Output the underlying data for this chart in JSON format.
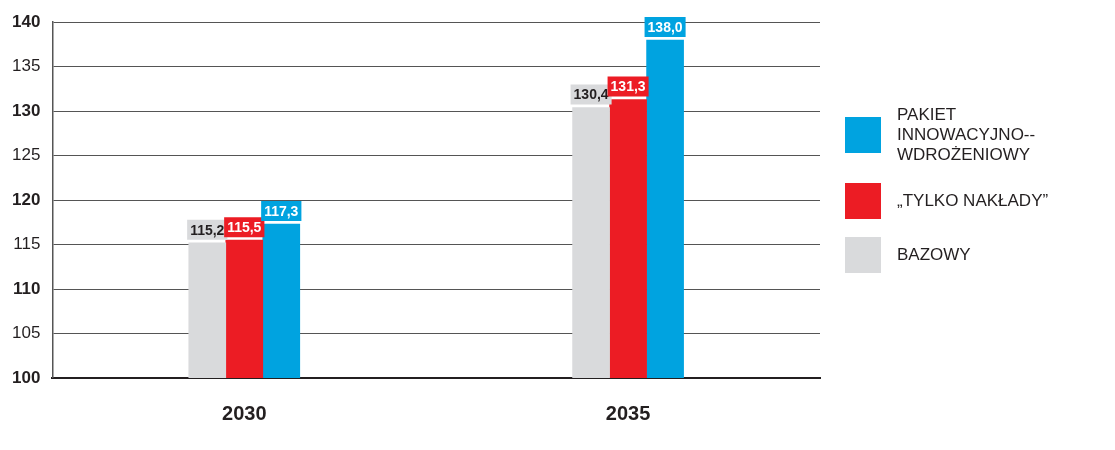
{
  "chart_data": {
    "type": "bar",
    "categories": [
      "2030",
      "2035"
    ],
    "series": [
      {
        "name": "BAZOWY",
        "color": "#d9dadc",
        "values": [
          115.2,
          130.4
        ],
        "value_labels": [
          "115,2",
          "130,4"
        ]
      },
      {
        "name": "„TYLKO NAKŁADY”",
        "color": "#ec1c24",
        "values": [
          115.5,
          131.3
        ],
        "value_labels": [
          "115,5",
          "131,3"
        ]
      },
      {
        "name": "PAKIET INNOWACYJNO--WDROŻENIOWY",
        "color": "#00a3e0",
        "values": [
          117.3,
          138.0
        ],
        "value_labels": [
          "117,3",
          "138,0"
        ]
      }
    ],
    "ylim": [
      100,
      140
    ],
    "yticks": [
      100,
      105,
      110,
      115,
      120,
      125,
      130,
      135,
      140
    ],
    "grid": "y",
    "legend": "right"
  }
}
